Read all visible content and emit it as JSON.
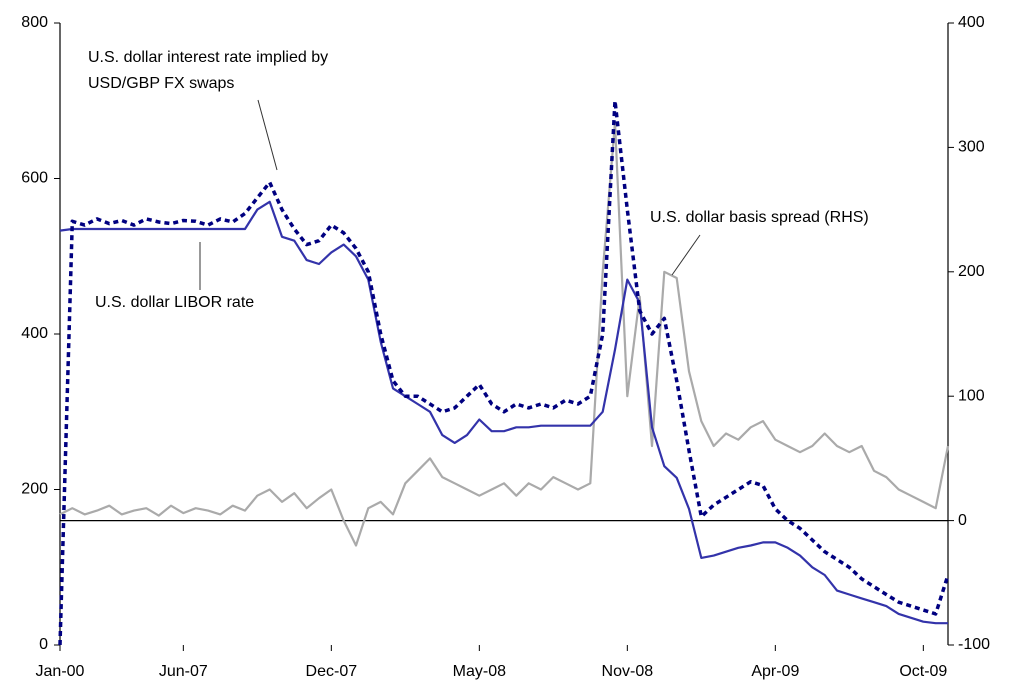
{
  "chart_data": {
    "type": "line",
    "categories": [
      "Jan-00",
      null,
      null,
      null,
      null,
      null,
      null,
      null,
      null,
      null,
      "Jun-07",
      null,
      null,
      null,
      null,
      null,
      null,
      null,
      null,
      null,
      null,
      null,
      "Dec-07",
      null,
      null,
      null,
      null,
      null,
      null,
      null,
      null,
      null,
      null,
      null,
      "May-08",
      null,
      null,
      null,
      null,
      null,
      null,
      null,
      null,
      null,
      null,
      null,
      "Nov-08",
      null,
      null,
      null,
      null,
      null,
      null,
      null,
      null,
      null,
      null,
      null,
      "Apr-09",
      null,
      null,
      null,
      null,
      null,
      null,
      null,
      null,
      null,
      null,
      null,
      "Oct-09",
      null,
      null
    ],
    "series": [
      {
        "name": "U.S. dollar LIBOR rate",
        "color": "#3333aa",
        "dashed": false,
        "axis": "y",
        "values": [
          533,
          535,
          535,
          535,
          535,
          535,
          535,
          535,
          535,
          535,
          535,
          535,
          535,
          535,
          535,
          535,
          560,
          570,
          525,
          520,
          495,
          490,
          505,
          515,
          500,
          470,
          390,
          330,
          320,
          310,
          300,
          270,
          260,
          270,
          290,
          275,
          275,
          280,
          280,
          282,
          282,
          282,
          282,
          282,
          300,
          380,
          470,
          440,
          280,
          230,
          215,
          175,
          112,
          115,
          120,
          125,
          128,
          132,
          132,
          125,
          115,
          100,
          90,
          70,
          65,
          60,
          55,
          50,
          40,
          35,
          30,
          28,
          28
        ]
      },
      {
        "name": "U.S. dollar interest rate implied by USD/GBP FX swaps",
        "color": "#000080",
        "dashed": true,
        "axis": "y",
        "values": [
          0,
          545,
          540,
          548,
          542,
          546,
          540,
          548,
          544,
          542,
          546,
          545,
          540,
          548,
          544,
          555,
          575,
          595,
          560,
          535,
          515,
          520,
          540,
          530,
          510,
          480,
          400,
          340,
          320,
          320,
          310,
          300,
          305,
          320,
          335,
          310,
          300,
          310,
          305,
          310,
          305,
          315,
          310,
          320,
          400,
          700,
          560,
          430,
          400,
          420,
          340,
          250,
          165,
          180,
          190,
          200,
          210,
          205,
          175,
          160,
          150,
          135,
          120,
          110,
          100,
          85,
          75,
          65,
          55,
          50,
          45,
          40,
          90
        ]
      },
      {
        "name": "U.S. dollar basis spread (RHS)",
        "color": "#aaaaaa",
        "dashed": false,
        "axis": "y2",
        "values": [
          5,
          10,
          5,
          8,
          12,
          5,
          8,
          10,
          4,
          12,
          6,
          10,
          8,
          5,
          12,
          8,
          20,
          25,
          15,
          22,
          10,
          18,
          25,
          0,
          -20,
          10,
          15,
          5,
          30,
          40,
          50,
          35,
          30,
          25,
          20,
          25,
          30,
          20,
          30,
          25,
          35,
          30,
          25,
          30,
          200,
          320,
          100,
          180,
          60,
          200,
          195,
          120,
          80,
          60,
          70,
          65,
          75,
          80,
          65,
          60,
          55,
          60,
          70,
          60,
          55,
          60,
          40,
          35,
          25,
          20,
          15,
          10,
          60
        ]
      }
    ],
    "annotations": [
      "U.S. dollar interest rate implied by",
      "USD/GBP FX swaps",
      "U.S. dollar LIBOR rate",
      "U.S. dollar basis spread (RHS)"
    ],
    "ylim": [
      0,
      800
    ],
    "yticks": [
      0,
      200,
      400,
      600,
      800
    ],
    "y2lim": [
      -100,
      400
    ],
    "y2ticks": [
      -100,
      0,
      100,
      200,
      300,
      400
    ],
    "grid": false
  }
}
